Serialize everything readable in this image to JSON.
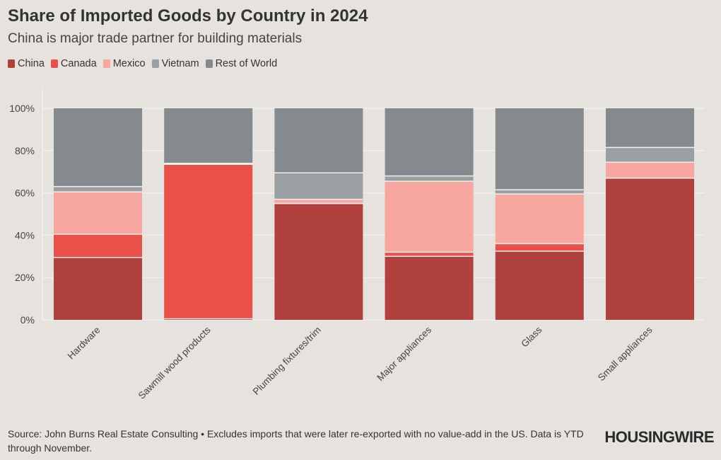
{
  "header": {
    "title": "Share of Imported Goods by Country in 2024",
    "subtitle": "China is major trade partner for building materials"
  },
  "footer": {
    "source": "Source: John Burns Real Estate Consulting • Excludes imports that were later re-exported with no value-add in the US. Data is YTD through November.",
    "logo": "HOUSINGWIRE"
  },
  "colors": {
    "background": "#e6e3df",
    "China": "#b0413e",
    "Canada": "#e9504a",
    "Mexico": "#f7a6a0",
    "Vietnam": "#9aa0a2",
    "Rest of World": "#848a8d"
  },
  "chart_data": {
    "type": "bar",
    "stacked": true,
    "title": "Share of Imported Goods by Country in 2024",
    "subtitle": "China is major trade partner for building materials",
    "xlabel": "",
    "ylabel": "",
    "ylim": [
      0,
      100
    ],
    "yticks": [
      0,
      20,
      40,
      60,
      80,
      100
    ],
    "ytick_labels": [
      "0%",
      "20%",
      "40%",
      "60%",
      "80%",
      "100%"
    ],
    "grid": true,
    "legend_position": "top-left",
    "categories": [
      "Hardware",
      "Sawmill wood products",
      "Plumbing fixtures/trim",
      "Major appliances",
      "Glass",
      "Small appliances"
    ],
    "series": [
      {
        "name": "China",
        "values": [
          29.5,
          0.5,
          55,
          30,
          32.5,
          67
        ]
      },
      {
        "name": "Canada",
        "values": [
          11,
          73,
          0,
          2,
          3.5,
          0
        ]
      },
      {
        "name": "Mexico",
        "values": [
          20,
          0,
          2,
          33.5,
          23.5,
          7.5
        ]
      },
      {
        "name": "Vietnam",
        "values": [
          2.5,
          0.5,
          12.5,
          2.5,
          2,
          7
        ]
      },
      {
        "name": "Rest of World",
        "values": [
          37,
          26,
          30.5,
          32,
          38.5,
          18.5
        ]
      }
    ]
  }
}
